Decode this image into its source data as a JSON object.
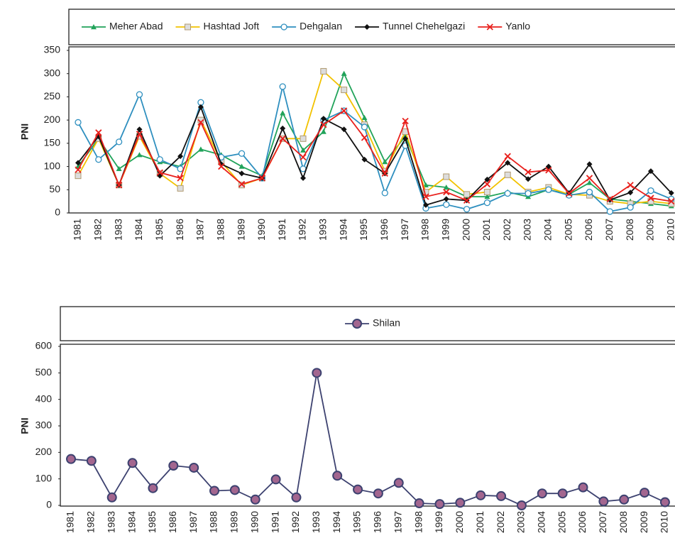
{
  "chart_data": [
    {
      "type": "line",
      "ylabel": "PNI",
      "categories": [
        "1981",
        "1982",
        "1983",
        "1984",
        "1985",
        "1986",
        "1987",
        "1988",
        "1989",
        "1990",
        "1991",
        "1992",
        "1993",
        "1994",
        "1995",
        "1996",
        "1997",
        "1998",
        "1999",
        "2000",
        "2001",
        "2002",
        "2003",
        "2004",
        "2005",
        "2006",
        "2007",
        "2008",
        "2009",
        "2010"
      ],
      "ylim": [
        0,
        350
      ],
      "yticks": [
        0,
        50,
        100,
        150,
        200,
        250,
        300,
        350
      ],
      "series": [
        {
          "name": "Meher Abad",
          "color": "#21a35a",
          "marker": "triangle",
          "values": [
            100,
            160,
            95,
            125,
            110,
            100,
            137,
            125,
            100,
            80,
            215,
            135,
            175,
            300,
            205,
            110,
            165,
            60,
            55,
            35,
            35,
            45,
            35,
            50,
            40,
            65,
            30,
            25,
            20,
            15
          ]
        },
        {
          "name": "Hashtad Joft",
          "color": "#f2c200",
          "marker": "square",
          "values": [
            80,
            160,
            60,
            165,
            85,
            53,
            200,
            110,
            60,
            75,
            160,
            160,
            305,
            265,
            190,
            90,
            175,
            45,
            78,
            40,
            45,
            82,
            45,
            55,
            40,
            38,
            25,
            20,
            25,
            20
          ]
        },
        {
          "name": "Dehgalan",
          "color": "#2e8fbf",
          "marker": "circle",
          "values": [
            195,
            115,
            153,
            255,
            115,
            95,
            238,
            120,
            128,
            75,
            272,
            95,
            200,
            220,
            185,
            43,
            145,
            10,
            18,
            8,
            22,
            42,
            42,
            50,
            38,
            45,
            3,
            12,
            48,
            30
          ]
        },
        {
          "name": "Tunnel Chehelgazi",
          "color": "#111111",
          "marker": "diamond",
          "values": [
            108,
            165,
            60,
            180,
            80,
            122,
            228,
            105,
            85,
            75,
            182,
            75,
            203,
            180,
            115,
            85,
            160,
            17,
            30,
            27,
            72,
            108,
            73,
            100,
            43,
            105,
            28,
            44,
            90,
            43
          ]
        },
        {
          "name": "Yanlo",
          "color": "#e8201c",
          "marker": "cross",
          "values": [
            93,
            173,
            60,
            170,
            87,
            75,
            195,
            100,
            62,
            75,
            160,
            120,
            190,
            220,
            162,
            85,
            198,
            35,
            45,
            27,
            62,
            122,
            88,
            92,
            42,
            75,
            30,
            60,
            32,
            25
          ]
        }
      ]
    },
    {
      "type": "line",
      "ylabel": "PNI",
      "categories": [
        "1981",
        "1982",
        "1983",
        "1984",
        "1985",
        "1986",
        "1987",
        "1988",
        "1989",
        "1990",
        "1991",
        "1992",
        "1993",
        "1994",
        "1995",
        "1996",
        "1997",
        "1998",
        "1999",
        "2000",
        "2001",
        "2002",
        "2003",
        "2004",
        "2005",
        "2006",
        "2007",
        "2008",
        "2009",
        "2010"
      ],
      "ylim": [
        0,
        600
      ],
      "yticks": [
        0,
        100,
        200,
        300,
        400,
        500,
        600
      ],
      "series": [
        {
          "name": "Shilan",
          "color": "#3d4270",
          "marker": "circle",
          "marker_fill": "#a3668f",
          "values": [
            175,
            168,
            30,
            160,
            65,
            150,
            142,
            55,
            58,
            22,
            98,
            30,
            500,
            112,
            60,
            45,
            85,
            8,
            5,
            10,
            38,
            35,
            0,
            45,
            45,
            68,
            15,
            22,
            48,
            12
          ]
        }
      ]
    }
  ]
}
